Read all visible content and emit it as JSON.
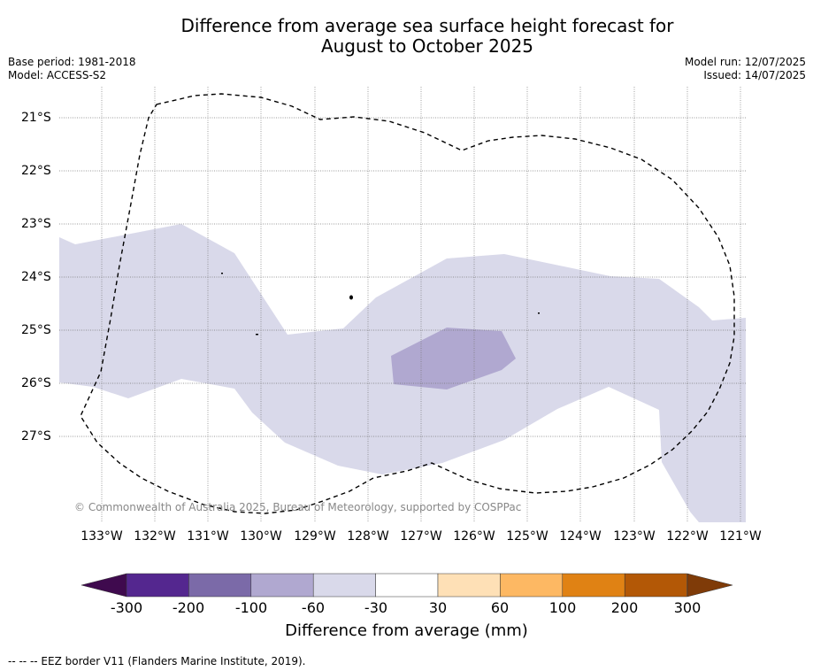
{
  "title_line1": "Difference from average sea surface height forecast for",
  "title_line2": "August to October 2025",
  "meta_left": [
    "Base period: 1981-2018",
    "Model: ACCESS-S2"
  ],
  "meta_right": [
    "Model run: 12/07/2025",
    "Issued: 14/07/2025"
  ],
  "copyright": "© Commonwealth of Australia 2025, Bureau of Meteorology, supported by COSPPac",
  "lat_labels": [
    "21°S",
    "22°S",
    "23°S",
    "24°S",
    "25°S",
    "26°S",
    "27°S"
  ],
  "lon_labels": [
    "133°W",
    "132°W",
    "131°W",
    "130°W",
    "129°W",
    "128°W",
    "127°W",
    "126°W",
    "125°W",
    "124°W",
    "123°W",
    "122°W",
    "121°W"
  ],
  "colorbar": {
    "title": "Difference from average (mm)",
    "ticks": [
      "-300",
      "-200",
      "-100",
      "-60",
      "-30",
      "30",
      "60",
      "100",
      "200",
      "300"
    ],
    "colors": [
      "#3f0a4e",
      "#54278f",
      "#7b6aa8",
      "#b0a8d0",
      "#d9d9ea",
      "#ffffff",
      "#fee0b6",
      "#fdb863",
      "#e08214",
      "#b35806",
      "#7f3b08"
    ]
  },
  "legend_text": "--  --  -- EEZ border V11 (Flanders Marine Institute, 2019)."
}
